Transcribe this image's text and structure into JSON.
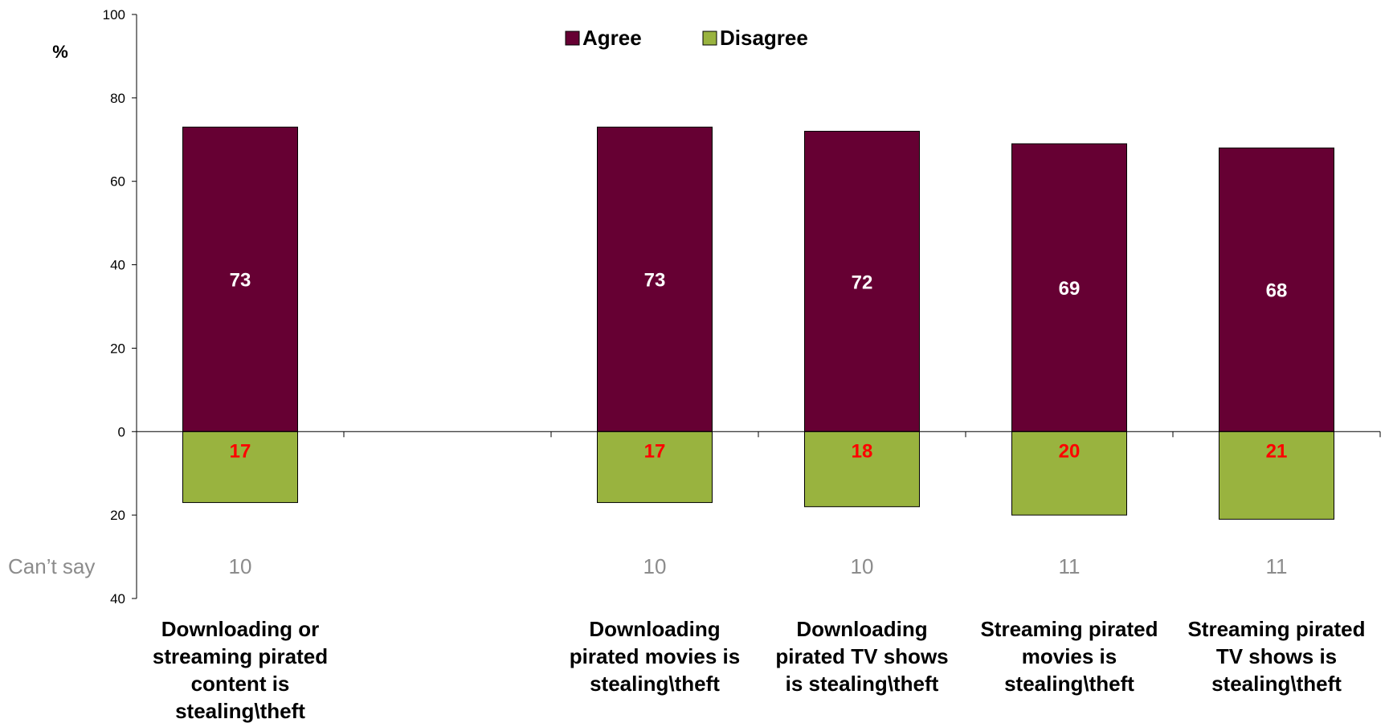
{
  "chart_data": {
    "type": "bar",
    "stacked": "diverging",
    "categories": [
      [
        "Downloading or",
        "streaming pirated",
        "content is",
        "stealing\\theft"
      ],
      [],
      [
        "Downloading",
        "pirated movies is",
        "stealing\\theft"
      ],
      [
        "Downloading",
        "pirated TV shows",
        "is stealing\\theft"
      ],
      [
        "Streaming pirated",
        "movies is",
        "stealing\\theft"
      ],
      [
        "Streaming pirated",
        "TV shows is",
        "stealing\\theft"
      ]
    ],
    "series": [
      {
        "name": "Agree",
        "values": [
          73,
          null,
          73,
          72,
          69,
          68
        ],
        "color": "#660033",
        "label_color": "#ffffff",
        "direction": "up"
      },
      {
        "name": "Disagree",
        "values": [
          17,
          null,
          17,
          18,
          20,
          21
        ],
        "color": "#99b33f",
        "label_color": "#ff0000",
        "direction": "down"
      }
    ],
    "cant_say": {
      "label": "Can’t say",
      "values": [
        10,
        null,
        10,
        10,
        11,
        11
      ],
      "color": "#8c8c8c"
    },
    "y_unit_label": "%",
    "y_ticks": [
      {
        "value": 100,
        "label": "100"
      },
      {
        "value": 80,
        "label": "80"
      },
      {
        "value": 60,
        "label": "60"
      },
      {
        "value": 40,
        "label": "40"
      },
      {
        "value": 20,
        "label": "20"
      },
      {
        "value": 0,
        "label": "0"
      },
      {
        "value": -20,
        "label": "20"
      },
      {
        "value": -40,
        "label": "40"
      }
    ],
    "ylim": [
      -40,
      100
    ],
    "grid": false,
    "legend_position": "top-center"
  }
}
